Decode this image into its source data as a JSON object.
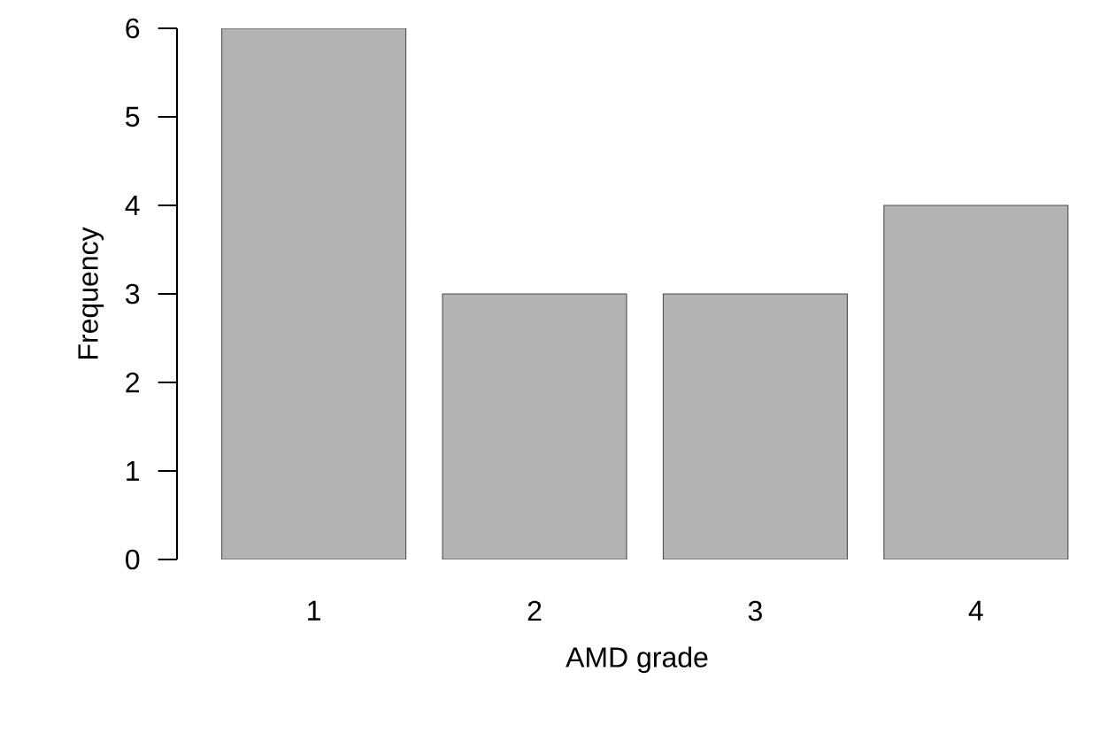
{
  "chart_data": {
    "type": "bar",
    "xlabel": "AMD grade",
    "ylabel": "Frequency",
    "categories": [
      "1",
      "2",
      "3",
      "4"
    ],
    "values": [
      6,
      3,
      3,
      4
    ],
    "color": "#b3b3b3",
    "ylim": [
      0,
      6
    ],
    "yticks": [
      0,
      1,
      2,
      3,
      4,
      5,
      6
    ]
  }
}
